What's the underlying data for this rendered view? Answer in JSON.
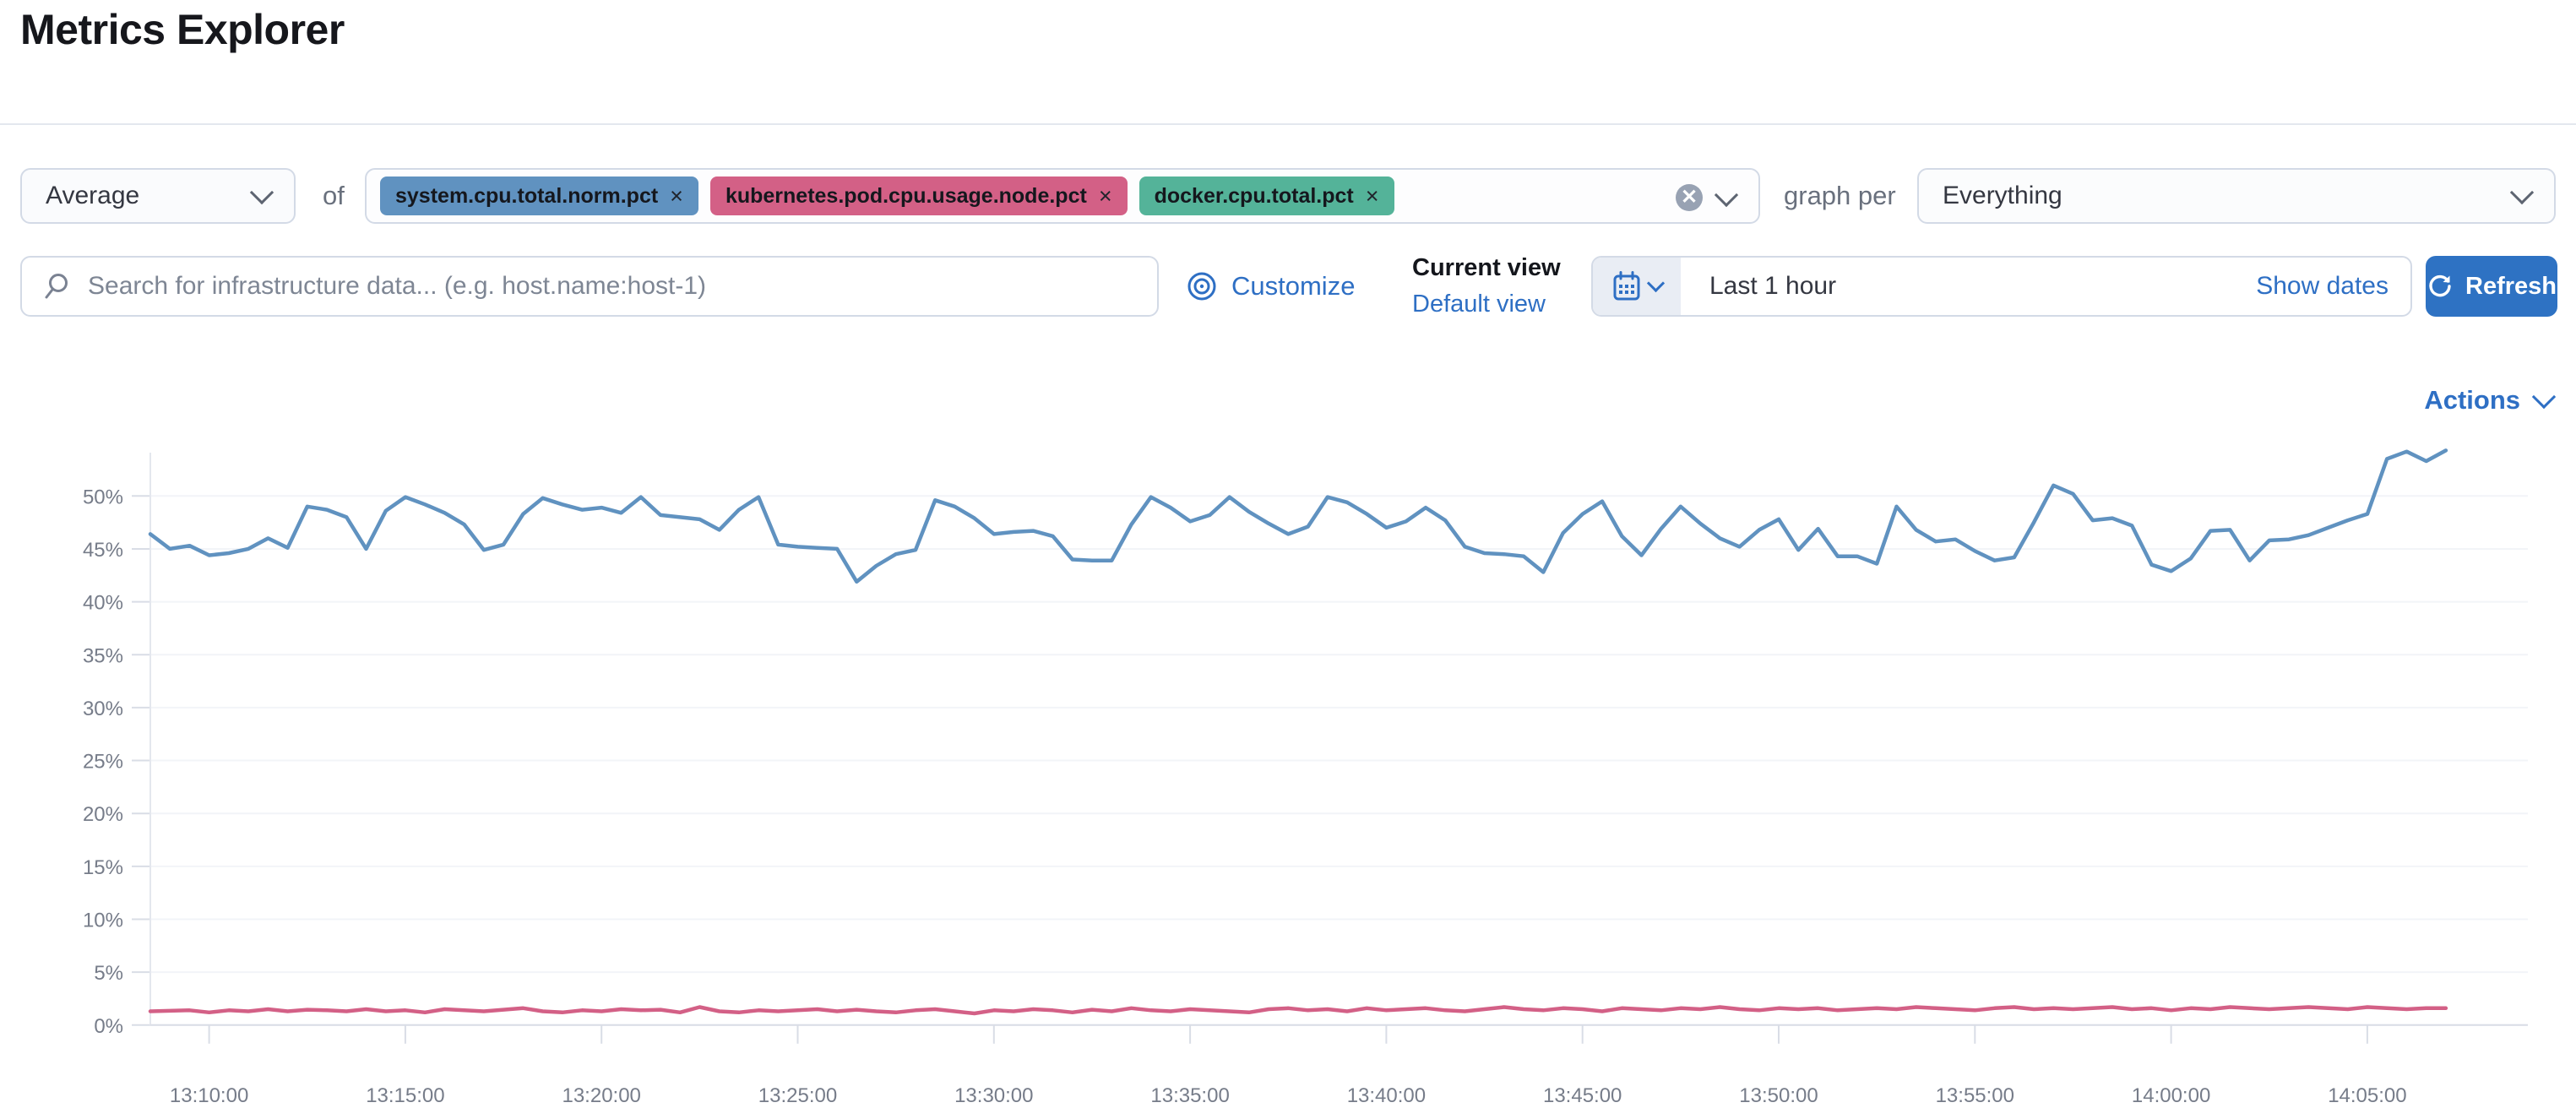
{
  "page": {
    "title": "Metrics Explorer"
  },
  "toolbar": {
    "aggregation": {
      "value": "Average"
    },
    "of_label": "of",
    "metrics": [
      {
        "label": "system.cpu.total.norm.pct",
        "color": "#6092C0"
      },
      {
        "label": "kubernetes.pod.cpu.usage.node.pct",
        "color": "#D36086"
      },
      {
        "label": "docker.cpu.total.pct",
        "color": "#54B399"
      }
    ],
    "clear_icon": "cross-in-circle",
    "graph_per_label": "graph per",
    "group_by": {
      "value": "Everything"
    }
  },
  "search": {
    "placeholder": "Search for infrastructure data... (e.g. host.name:host-1)"
  },
  "view_controls": {
    "customize_label": "Customize",
    "current_view_label": "Current view",
    "default_view_label": "Default view"
  },
  "time_picker": {
    "range_label": "Last 1 hour",
    "show_dates_label": "Show dates",
    "refresh_label": "Refresh"
  },
  "actions_label": "Actions",
  "colors": {
    "link_blue": "#2e6fc4",
    "button_blue": "#2e72c3",
    "series_blue": "#6092C0",
    "series_pink": "#D36086",
    "pill_green": "#54B399"
  },
  "chart_data": {
    "type": "line",
    "unit": "%",
    "x_start": "13:08:30",
    "x_interval_seconds": 30,
    "x_tick_labels": [
      "13:10:00",
      "13:15:00",
      "13:20:00",
      "13:25:00",
      "13:30:00",
      "13:35:00",
      "13:40:00",
      "13:45:00",
      "13:50:00",
      "13:55:00",
      "14:00:00",
      "14:05:00"
    ],
    "y_ticks": [
      0,
      5,
      10,
      15,
      20,
      25,
      30,
      35,
      40,
      45,
      50
    ],
    "ylim": [
      0,
      55
    ],
    "grid": "horizontal-faint",
    "legend": "none",
    "series": [
      {
        "name": "Average system.cpu.total.norm.pct",
        "color": "#6092C0",
        "values": [
          46.4,
          45.0,
          45.3,
          44.4,
          44.6,
          45.0,
          46.0,
          45.1,
          49.0,
          48.7,
          48.0,
          45.0,
          48.6,
          49.9,
          49.2,
          48.4,
          47.3,
          44.9,
          45.4,
          48.3,
          49.8,
          49.2,
          48.7,
          48.9,
          48.4,
          49.9,
          48.2,
          48.0,
          47.8,
          46.8,
          48.7,
          49.9,
          45.4,
          45.2,
          45.1,
          45.0,
          41.9,
          43.4,
          44.5,
          44.9,
          49.6,
          49.0,
          47.9,
          46.4,
          46.6,
          46.7,
          46.2,
          44.0,
          43.9,
          43.9,
          47.3,
          49.9,
          48.9,
          47.6,
          48.2,
          49.9,
          48.5,
          47.4,
          46.4,
          47.1,
          49.9,
          49.4,
          48.3,
          47.0,
          47.6,
          48.9,
          47.7,
          45.2,
          44.6,
          44.5,
          44.3,
          42.8,
          46.5,
          48.3,
          49.5,
          46.2,
          44.4,
          46.9,
          49.0,
          47.4,
          46.0,
          45.2,
          46.8,
          47.8,
          44.9,
          46.9,
          44.3,
          44.3,
          43.6,
          49.0,
          46.8,
          45.7,
          45.9,
          44.8,
          43.9,
          44.2,
          47.5,
          51.0,
          50.2,
          47.7,
          47.9,
          47.2,
          43.5,
          42.9,
          44.1,
          46.7,
          46.8,
          43.9,
          45.8,
          45.9,
          46.3,
          47.0,
          47.7,
          48.3,
          53.5,
          54.2,
          53.3,
          54.3
        ]
      },
      {
        "name": "Average kubernetes.pod.cpu.usage.node.pct",
        "color": "#D36086",
        "values": [
          1.3,
          1.35,
          1.4,
          1.2,
          1.4,
          1.3,
          1.5,
          1.3,
          1.45,
          1.4,
          1.3,
          1.5,
          1.3,
          1.4,
          1.2,
          1.5,
          1.4,
          1.3,
          1.45,
          1.6,
          1.3,
          1.2,
          1.4,
          1.3,
          1.5,
          1.4,
          1.45,
          1.2,
          1.7,
          1.3,
          1.2,
          1.4,
          1.3,
          1.4,
          1.5,
          1.3,
          1.45,
          1.3,
          1.2,
          1.4,
          1.5,
          1.3,
          1.1,
          1.4,
          1.3,
          1.5,
          1.4,
          1.2,
          1.45,
          1.3,
          1.6,
          1.4,
          1.3,
          1.5,
          1.4,
          1.3,
          1.2,
          1.5,
          1.6,
          1.4,
          1.5,
          1.3,
          1.6,
          1.4,
          1.5,
          1.6,
          1.4,
          1.3,
          1.5,
          1.7,
          1.5,
          1.4,
          1.6,
          1.5,
          1.3,
          1.6,
          1.5,
          1.4,
          1.6,
          1.5,
          1.7,
          1.5,
          1.4,
          1.6,
          1.5,
          1.6,
          1.4,
          1.5,
          1.6,
          1.5,
          1.7,
          1.6,
          1.5,
          1.4,
          1.6,
          1.7,
          1.5,
          1.6,
          1.5,
          1.6,
          1.7,
          1.5,
          1.6,
          1.4,
          1.6,
          1.5,
          1.7,
          1.6,
          1.5,
          1.6,
          1.7,
          1.6,
          1.5,
          1.7,
          1.6,
          1.5,
          1.6,
          1.6
        ]
      }
    ]
  }
}
